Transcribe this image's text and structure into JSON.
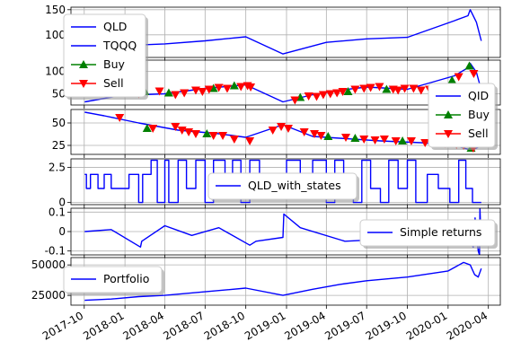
{
  "colors": {
    "line": "#0000ff",
    "buy": "#008000",
    "sell": "#ff0000",
    "grid": "#b0b0b0",
    "axis": "#000000"
  },
  "chart_data": [
    {
      "type": "line",
      "ylim": [
        55,
        155
      ],
      "yticks": [
        100,
        150
      ],
      "series": [
        {
          "name": "QLD",
          "x": [
            "2017-10-02",
            "2017-12-15",
            "2018-04-01",
            "2018-07-01",
            "2018-10-01",
            "2018-12-24",
            "2019-04-01",
            "2019-07-01",
            "2019-10-01",
            "2020-01-15",
            "2020-02-15",
            "2020-02-20",
            "2020-03-05",
            "2020-03-16"
          ],
          "y": [
            70,
            78,
            82,
            88,
            96,
            62,
            85,
            92,
            95,
            128,
            138,
            150,
            125,
            88
          ]
        }
      ],
      "legend": [
        {
          "label": "QLD",
          "kind": "line"
        },
        {
          "label": "TQQQ",
          "kind": "line"
        },
        {
          "label": "Buy",
          "kind": "buy"
        },
        {
          "label": "Sell",
          "kind": "sell"
        }
      ],
      "legend_placement": "upper-left",
      "grid": true
    },
    {
      "type": "line",
      "ylim": [
        25,
        125
      ],
      "yticks": [
        50,
        100
      ],
      "series": [
        {
          "name": "TQQQ",
          "x": [
            "2017-10-02",
            "2017-12-15",
            "2018-02-08",
            "2018-04-01",
            "2018-07-01",
            "2018-10-01",
            "2018-12-24",
            "2019-03-01",
            "2019-05-01",
            "2019-07-01",
            "2019-10-01",
            "2020-01-15",
            "2020-02-15",
            "2020-02-20",
            "2020-03-05",
            "2020-03-16"
          ],
          "y": [
            32,
            45,
            48,
            50,
            62,
            70,
            32,
            48,
            58,
            65,
            60,
            90,
            108,
            118,
            98,
            58
          ]
        }
      ],
      "buy": {
        "x": [
          "2018-02-15",
          "2018-04-10",
          "2018-07-20",
          "2018-09-05",
          "2019-02-01",
          "2019-05-20",
          "2019-08-15",
          "2020-01-10",
          "2020-02-18"
        ],
        "y": [
          55,
          52,
          62,
          68,
          42,
          55,
          60,
          80,
          112
        ]
      },
      "sell": {
        "x": [
          "2018-02-01",
          "2018-03-20",
          "2018-04-25",
          "2018-05-15",
          "2018-06-10",
          "2018-06-25",
          "2018-07-10",
          "2018-08-01",
          "2018-08-20",
          "2018-09-20",
          "2018-10-05",
          "2018-10-12",
          "2019-01-20",
          "2019-02-20",
          "2019-03-10",
          "2019-03-25",
          "2019-04-10",
          "2019-04-25",
          "2019-05-08",
          "2019-06-05",
          "2019-06-25",
          "2019-07-10",
          "2019-07-30",
          "2019-08-30",
          "2019-09-10",
          "2019-09-25",
          "2019-10-15",
          "2019-11-01",
          "2019-11-20",
          "2019-12-05",
          "2019-12-20",
          "2020-01-25",
          "2020-02-28"
        ],
        "y": [
          50,
          56,
          48,
          52,
          58,
          55,
          60,
          64,
          62,
          66,
          68,
          65,
          36,
          45,
          44,
          48,
          50,
          52,
          55,
          60,
          62,
          64,
          66,
          60,
          58,
          62,
          62,
          58,
          60,
          64,
          66,
          88,
          95
        ]
      },
      "legend": [
        {
          "label": "QID",
          "kind": "line"
        },
        {
          "label": "Buy",
          "kind": "buy"
        },
        {
          "label": "Sell",
          "kind": "sell"
        }
      ],
      "legend_placement": "lower-right",
      "grid": true
    },
    {
      "type": "line",
      "ylim": [
        15,
        65
      ],
      "yticks": [
        25,
        50
      ],
      "series": [
        {
          "name": "QID",
          "x": [
            "2017-10-02",
            "2017-11-15",
            "2018-02-01",
            "2018-05-01",
            "2018-08-01",
            "2018-10-01",
            "2018-12-24",
            "2019-03-01",
            "2019-05-01",
            "2019-08-01",
            "2019-11-01",
            "2020-01-15",
            "2020-02-20",
            "2020-03-05",
            "2020-03-16"
          ],
          "y": [
            62,
            58,
            50,
            42,
            38,
            34,
            48,
            35,
            33,
            30,
            28,
            25,
            20,
            22,
            25
          ]
        }
      ],
      "buy": {
        "x": [
          "2018-02-20",
          "2018-07-05",
          "2019-04-05",
          "2019-06-05",
          "2019-09-20",
          "2020-02-22"
        ],
        "y": [
          44,
          38,
          35,
          33,
          30,
          22
        ]
      },
      "sell": {
        "x": [
          "2017-12-20",
          "2018-03-05",
          "2018-04-25",
          "2018-05-10",
          "2018-05-25",
          "2018-06-10",
          "2018-07-20",
          "2018-08-10",
          "2018-09-05",
          "2018-10-10",
          "2018-12-01",
          "2018-12-20",
          "2019-01-05",
          "2019-02-10",
          "2019-03-05",
          "2019-03-20",
          "2019-05-15",
          "2019-06-25",
          "2019-07-20",
          "2019-08-10",
          "2019-09-05",
          "2019-10-10",
          "2019-11-10",
          "2019-12-05",
          "2019-12-25",
          "2020-01-20",
          "2020-02-05",
          "2020-02-27"
        ],
        "y": [
          56,
          44,
          46,
          42,
          40,
          38,
          36,
          36,
          32,
          30,
          42,
          46,
          44,
          40,
          38,
          36,
          34,
          32,
          31,
          32,
          30,
          30,
          28,
          28,
          27,
          26,
          25,
          22
        ]
      },
      "legend_placement": "none",
      "grid": true
    },
    {
      "type": "step",
      "ylim": [
        -0.15,
        3.1
      ],
      "yticks": [
        0.0,
        2.5
      ],
      "series": [
        {
          "name": "QLD_with_states",
          "x": [
            "2017-10-02",
            "2017-10-06",
            "2017-10-15",
            "2017-11-01",
            "2017-11-15",
            "2017-12-01",
            "2018-01-10",
            "2018-02-01",
            "2018-02-10",
            "2018-03-01",
            "2018-03-15",
            "2018-04-01",
            "2018-04-10",
            "2018-05-01",
            "2018-05-20",
            "2018-06-10",
            "2018-07-01",
            "2018-07-20",
            "2018-08-15",
            "2018-09-01",
            "2018-09-20",
            "2018-10-10",
            "2018-11-01",
            "2018-12-01",
            "2019-01-01",
            "2019-02-01",
            "2019-03-01",
            "2019-04-01",
            "2019-04-20",
            "2019-05-10",
            "2019-06-01",
            "2019-06-20",
            "2019-07-10",
            "2019-08-01",
            "2019-08-20",
            "2019-09-10",
            "2019-10-01",
            "2019-10-20",
            "2019-11-15",
            "2019-12-10",
            "2020-01-05",
            "2020-01-25",
            "2020-02-10",
            "2020-02-25",
            "2020-03-16"
          ],
          "y": [
            2,
            1,
            2,
            1,
            2,
            1,
            2,
            0,
            2,
            3,
            0,
            3,
            0,
            3,
            1,
            3,
            0,
            3,
            1,
            3,
            0,
            3,
            1,
            2,
            3,
            1,
            3,
            0,
            3,
            2,
            0,
            3,
            1,
            0,
            3,
            1,
            3,
            0,
            2,
            1,
            0,
            3,
            1,
            0,
            0
          ]
        }
      ],
      "legend": [
        {
          "label": "QLD_with_states",
          "kind": "line"
        }
      ],
      "legend_placement": "lower-center",
      "grid": true
    },
    {
      "type": "line",
      "ylim": [
        -0.12,
        0.12
      ],
      "yticks": [
        -0.1,
        0.0,
        0.1
      ],
      "series": [
        {
          "name": "Simple returns",
          "x": [
            "2017-10-02",
            "2017-12-01",
            "2018-02-05",
            "2018-02-08",
            "2018-04-01",
            "2018-06-01",
            "2018-08-01",
            "2018-10-10",
            "2018-10-24",
            "2018-12-24",
            "2018-12-26",
            "2019-02-01",
            "2019-05-13",
            "2019-08-05",
            "2019-10-01",
            "2019-12-01",
            "2020-01-31",
            "2020-02-24",
            "2020-02-27",
            "2020-03-02",
            "2020-03-09",
            "2020-03-12",
            "2020-03-13",
            "2020-03-16"
          ],
          "y": [
            0.0,
            0.01,
            -0.08,
            -0.05,
            0.03,
            -0.02,
            0.02,
            -0.07,
            -0.05,
            -0.03,
            0.09,
            0.02,
            -0.05,
            -0.04,
            0.02,
            0.01,
            -0.03,
            -0.07,
            -0.08,
            0.07,
            -0.1,
            -0.12,
            0.12,
            -0.07
          ]
        }
      ],
      "legend": [
        {
          "label": "Simple returns",
          "kind": "line"
        }
      ],
      "legend_placement": "center-right",
      "grid": true
    },
    {
      "type": "line",
      "ylim": [
        17000,
        56000
      ],
      "yticks": [
        25000,
        50000
      ],
      "series": [
        {
          "name": "Portfolio",
          "x": [
            "2017-10-02",
            "2017-12-01",
            "2018-02-01",
            "2018-04-01",
            "2018-07-01",
            "2018-10-01",
            "2018-12-24",
            "2019-03-01",
            "2019-05-01",
            "2019-07-01",
            "2019-10-01",
            "2020-01-01",
            "2020-02-05",
            "2020-02-20",
            "2020-03-01",
            "2020-03-09",
            "2020-03-16"
          ],
          "y": [
            21000,
            22000,
            24000,
            25000,
            28000,
            31000,
            25000,
            30000,
            34000,
            37000,
            40000,
            45000,
            52000,
            50000,
            42000,
            40000,
            47000
          ]
        }
      ],
      "legend": [
        {
          "label": "Portfolio",
          "kind": "line"
        }
      ],
      "legend_placement": "upper-left",
      "grid": true,
      "xticks": [
        "2017-10",
        "2018-01",
        "2018-04",
        "2018-07",
        "2018-10",
        "2019-01",
        "2019-04",
        "2019-07",
        "2019-10",
        "2020-01",
        "2020-04"
      ]
    }
  ]
}
